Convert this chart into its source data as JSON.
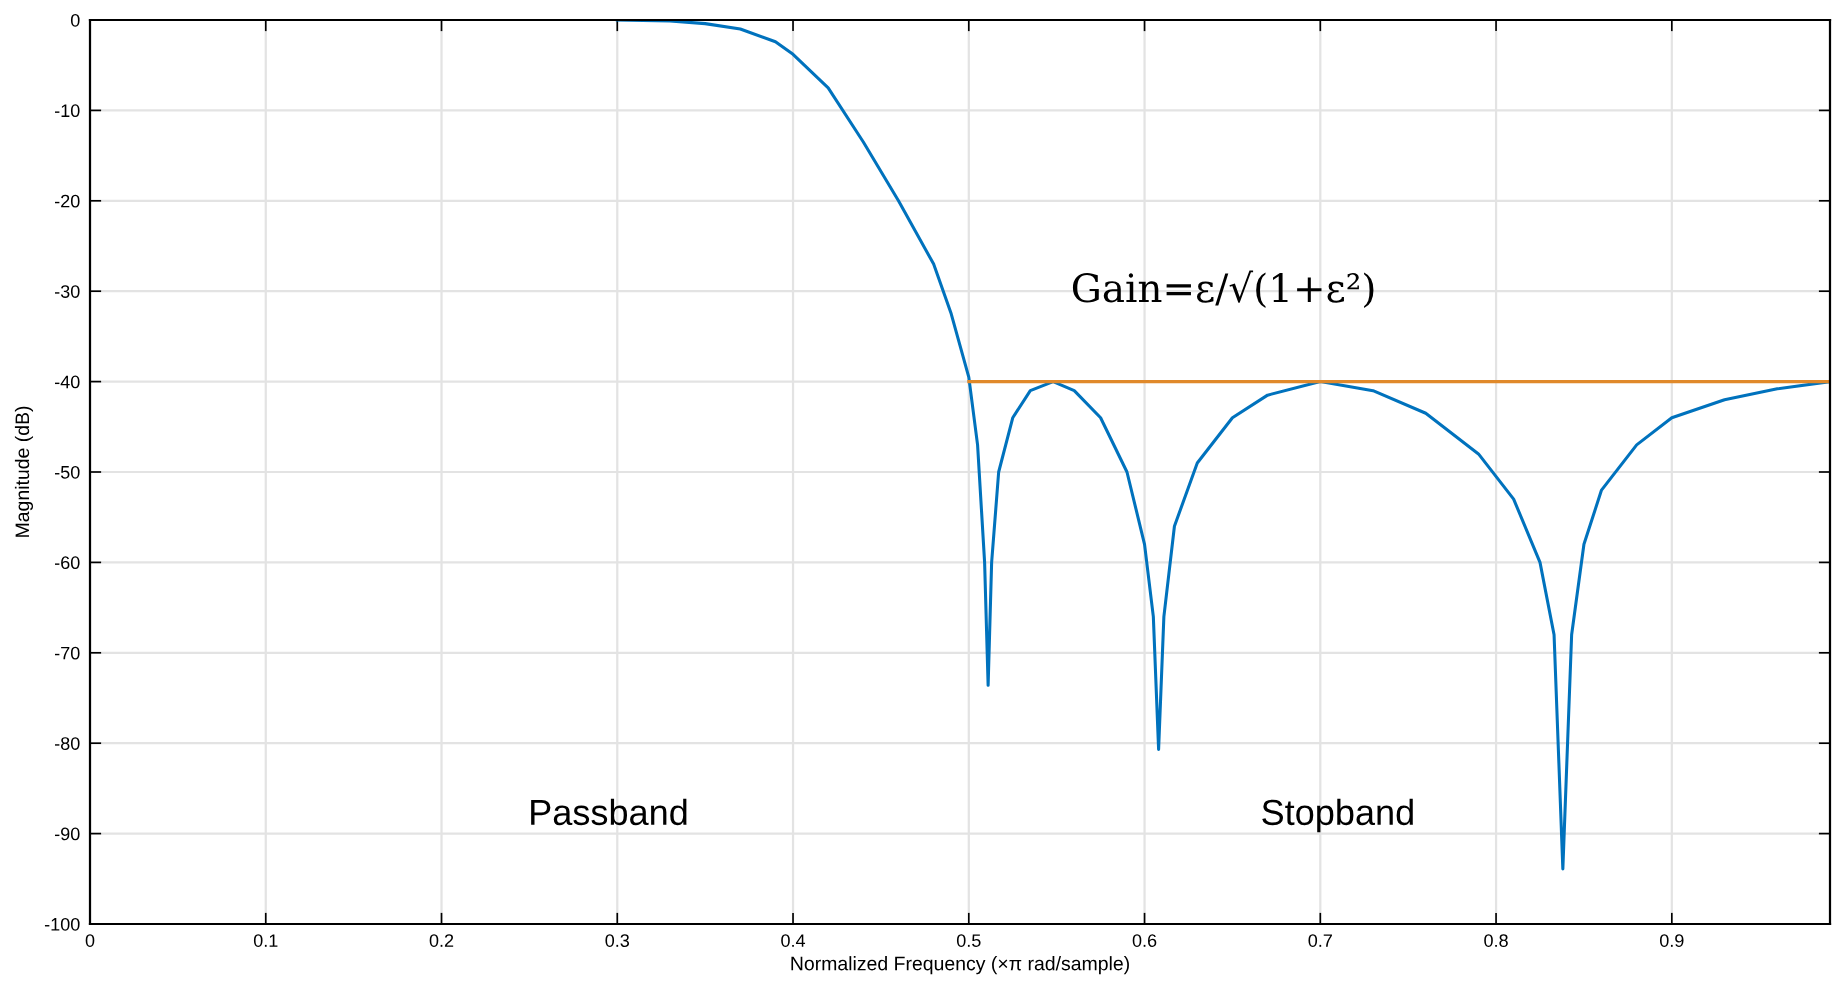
{
  "chart_data": {
    "type": "line",
    "xlabel": "Normalized Frequency (×π rad/sample)",
    "ylabel": "Magnitude (dB)",
    "xlim": [
      0,
      0.99
    ],
    "xticks": [
      0,
      0.1,
      0.2,
      0.3,
      0.4,
      0.5,
      0.6,
      0.7,
      0.8,
      0.9
    ],
    "ylim": [
      -100,
      0
    ],
    "yticks": [
      -100,
      -90,
      -80,
      -70,
      -60,
      -50,
      -40,
      -30,
      -20,
      -10,
      0
    ],
    "grid": true,
    "legend": false,
    "series": [
      {
        "color": "#0072bd",
        "x": [
          0.3,
          0.33,
          0.35,
          0.37,
          0.39,
          0.4,
          0.42,
          0.44,
          0.46,
          0.48,
          0.49,
          0.5,
          0.505,
          0.509,
          0.511,
          0.513,
          0.517,
          0.525,
          0.535,
          0.548,
          0.56,
          0.575,
          0.59,
          0.6,
          0.605,
          0.608,
          0.611,
          0.617,
          0.63,
          0.65,
          0.67,
          0.7,
          0.73,
          0.76,
          0.79,
          0.81,
          0.825,
          0.833,
          0.838,
          0.843,
          0.85,
          0.86,
          0.88,
          0.9,
          0.93,
          0.96,
          0.99
        ],
        "values": [
          0,
          -0.1,
          -0.4,
          -1.0,
          -2.4,
          -3.8,
          -7.5,
          -13.5,
          -20,
          -27,
          -32.5,
          -39.5,
          -47,
          -60,
          -73.6,
          -60,
          -50,
          -44,
          -41,
          -40,
          -41,
          -44,
          -50,
          -58,
          -66,
          -80.7,
          -66,
          -56,
          -49,
          -44,
          -41.5,
          -40,
          -41,
          -43.5,
          -48,
          -53,
          -60,
          -68,
          -93.9,
          -68,
          -58,
          -52,
          -47,
          -44,
          -42,
          -40.8,
          -40
        ]
      },
      {
        "color": "#e0892a",
        "x": [
          0.5,
          0.99
        ],
        "values": [
          -40,
          -40
        ]
      }
    ],
    "annotations": [
      "Gain=ε/√(1+ε²)",
      "Passband",
      "Stopband"
    ]
  }
}
